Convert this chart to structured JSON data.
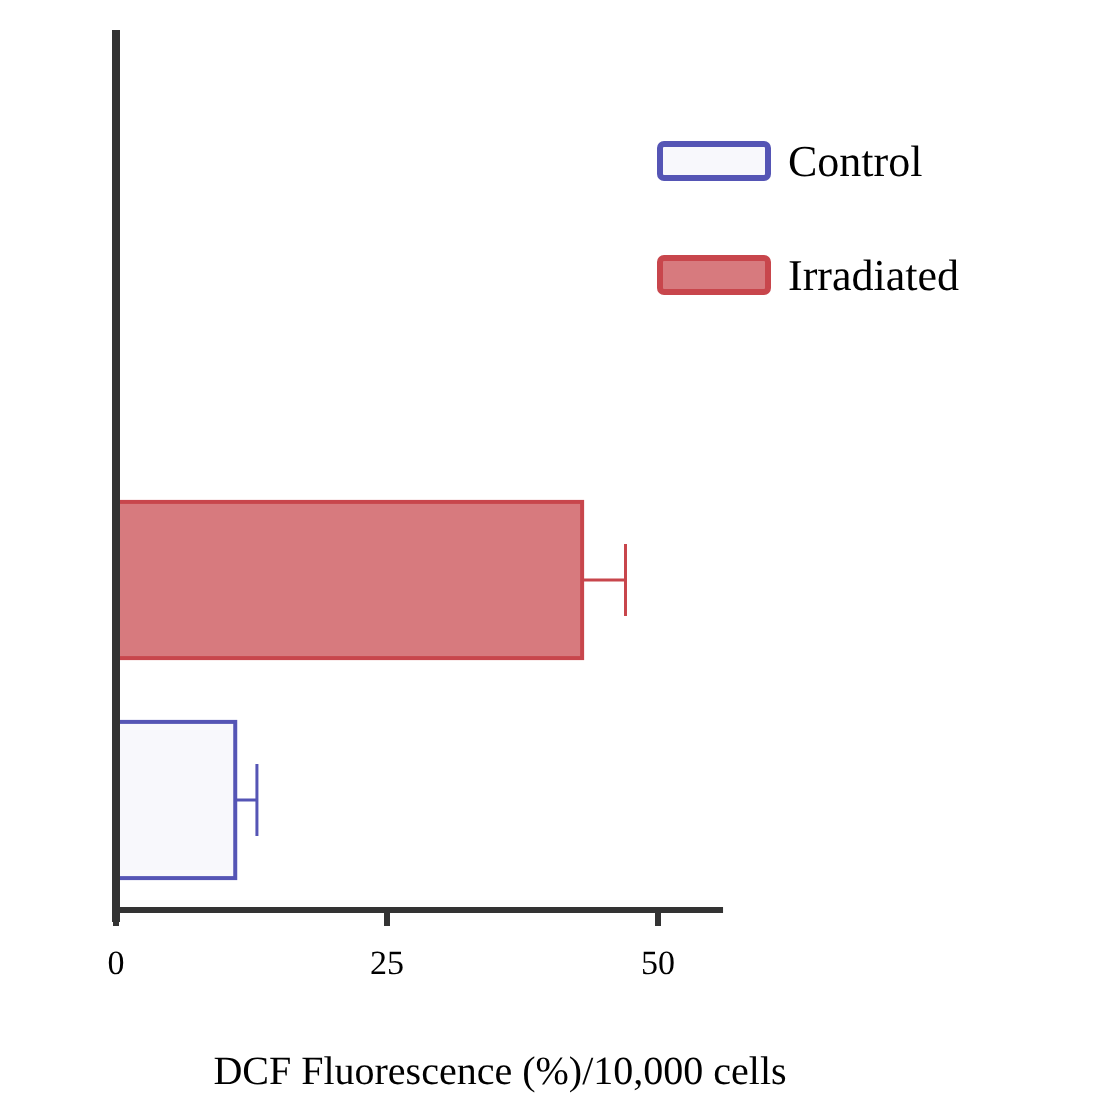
{
  "chart_data": {
    "type": "bar",
    "orientation": "horizontal",
    "xlabel": "DCF Fluorescence (%)/10,000 cells",
    "categories": [
      null,
      null,
      null,
      null
    ],
    "series": [
      {
        "name": "Control",
        "color": "#5555b5",
        "values": [
          null,
          null,
          null,
          11
        ],
        "errors": [
          null,
          null,
          null,
          2
        ]
      },
      {
        "name": "Irradiated",
        "color": "#c8464c",
        "values": [
          null,
          null,
          43,
          null
        ],
        "errors": [
          null,
          null,
          4,
          null
        ]
      }
    ],
    "xlim": [
      0,
      56
    ],
    "xticks": [
      0,
      25,
      50
    ],
    "legend": "top right"
  }
}
